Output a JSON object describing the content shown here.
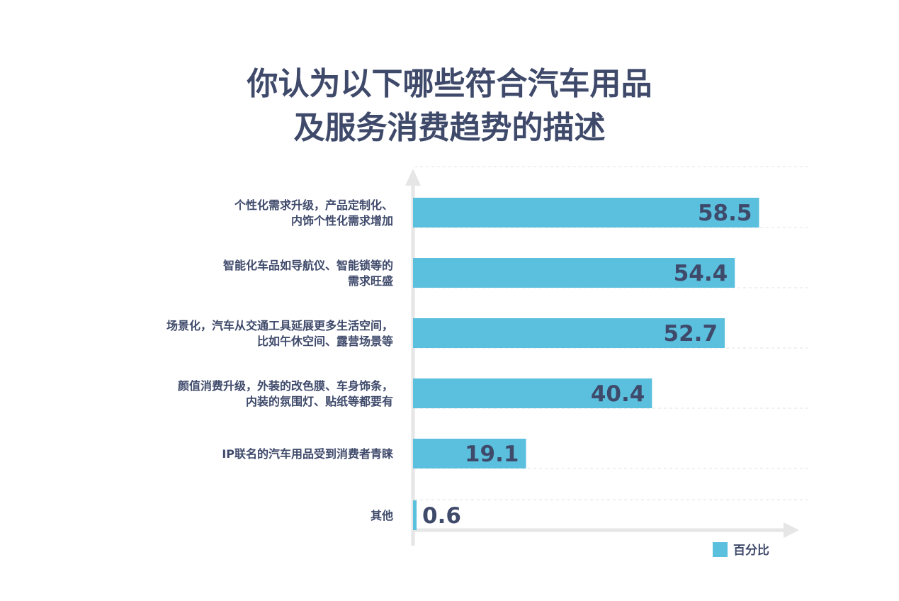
{
  "title_line1": "你认为以下哪些符合汽车用品",
  "title_line2": "及服务消费趋势的描述",
  "colors": {
    "bar": "#5bbfde",
    "text": "#3f4a6b",
    "axis": "#e6e6e6",
    "grid": "#e8e8e8"
  },
  "chart_data": {
    "type": "bar",
    "orientation": "horizontal",
    "categories": [
      [
        "个性化需求升级，产品定制化、",
        "内饰个性化需求增加"
      ],
      [
        "智能化车品如导航仪、智能锁等的",
        "需求旺盛"
      ],
      [
        "场景化，汽车从交通工具延展更多生活空间，",
        "比如午休空间、露营场景等"
      ],
      [
        "颜值消费升级，外装的改色膜、车身饰条，",
        "内装的氛围灯、贴纸等都要有"
      ],
      [
        "IP联名的汽车用品受到消费者青睐"
      ],
      [
        "其他"
      ]
    ],
    "values": [
      58.5,
      54.4,
      52.7,
      40.4,
      19.1,
      0.6
    ],
    "value_labels": [
      "58.5",
      "54.4",
      "52.7",
      "40.4",
      "19.1",
      "0.6"
    ],
    "xlim": [
      0,
      64
    ],
    "legend": {
      "label": "百分比",
      "position": "bottom-right"
    },
    "grid": "dashed horizontal"
  }
}
